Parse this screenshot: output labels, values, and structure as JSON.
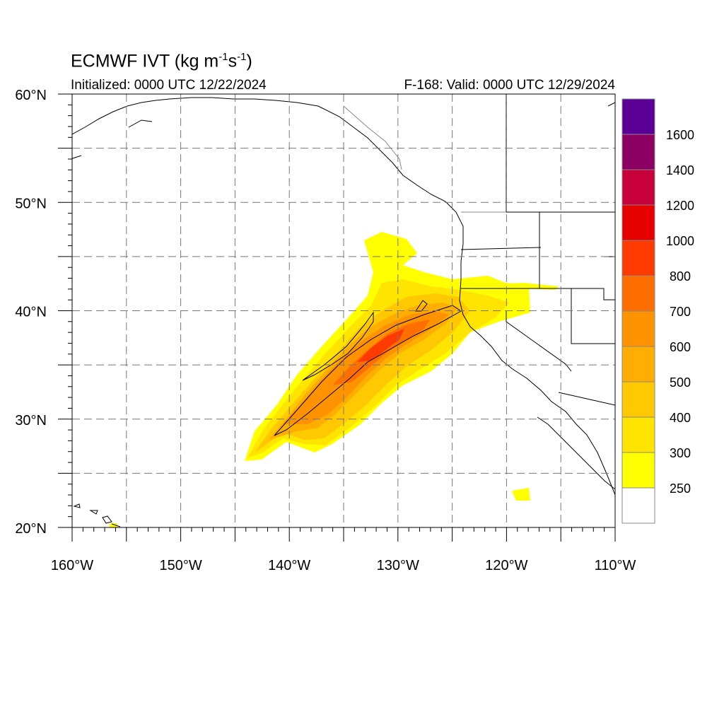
{
  "title": "ECMWF IVT (kg m",
  "title_units": {
    "m_exp": "-1",
    "s": "s",
    "s_exp": "-1",
    "close": ")"
  },
  "initialized": "Initialized: 0000 UTC 12/22/2024",
  "valid": "F-168: Valid: 0000 UTC 12/29/2024",
  "map": {
    "lon_range": [
      -160,
      -110
    ],
    "lat_range": [
      20,
      60
    ],
    "lon_labels": [
      "160°W",
      "150°W",
      "140°W",
      "130°W",
      "120°W",
      "110°W"
    ],
    "lat_labels": [
      "60°N",
      "50°N",
      "40°N",
      "30°N",
      "20°N"
    ],
    "grid": "dashed every 5 degrees"
  },
  "colorbar": {
    "levels": [
      250,
      300,
      400,
      500,
      600,
      700,
      800,
      1000,
      1200,
      1400,
      1600
    ],
    "labels": [
      "250",
      "300",
      "400",
      "500",
      "600",
      "700",
      "800",
      "1000",
      "1200",
      "1400",
      "1600"
    ],
    "colors": [
      "#ffffff",
      "#ffff00",
      "#ffe400",
      "#ffc800",
      "#ffad00",
      "#ff9200",
      "#ff6e00",
      "#ff3a00",
      "#e60000",
      "#c8003c",
      "#8c0064",
      "#5a0096"
    ]
  }
}
